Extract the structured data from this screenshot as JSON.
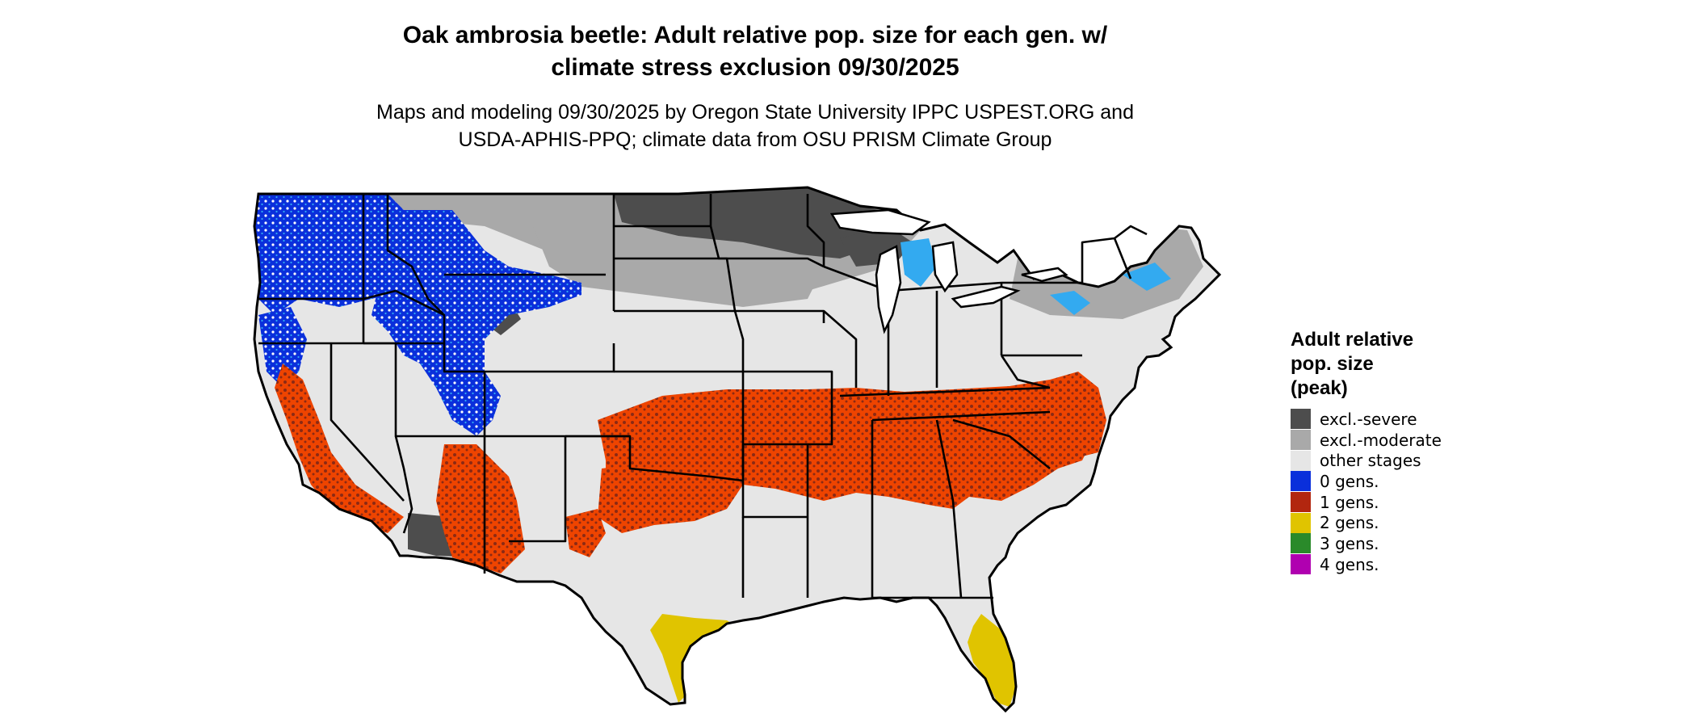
{
  "title": {
    "line1": "Oak ambrosia beetle: Adult relative pop. size for each gen. w/",
    "line2": "climate stress exclusion 09/30/2025"
  },
  "subtitle": {
    "line1": "Maps and modeling 09/30/2025 by Oregon State University IPPC USPEST.ORG and",
    "line2": "USDA-APHIS-PPQ; climate data from OSU PRISM Climate Group"
  },
  "legend": {
    "title_lines": [
      "Adult relative",
      "pop. size",
      "(peak)"
    ],
    "items": [
      {
        "label": "excl.-severe",
        "color": "#4d4d4d"
      },
      {
        "label": "excl.-moderate",
        "color": "#a9a9a9"
      },
      {
        "label": "other stages",
        "color": "#e6e6e6"
      },
      {
        "label": "0 gens.",
        "color": "#0a2fdb"
      },
      {
        "label": "1 gens.",
        "color": "#b2260f"
      },
      {
        "label": "2 gens.",
        "color": "#e0c400"
      },
      {
        "label": "3 gens.",
        "color": "#2a8a2a"
      },
      {
        "label": "4 gens.",
        "color": "#b000b0"
      }
    ]
  },
  "map": {
    "region": "Contiguous United States",
    "colors": {
      "background_land": "#e6e6e6",
      "excl_severe": "#4d4d4d",
      "excl_moderate": "#a9a9a9",
      "zero_gens": "#0a2fdb",
      "zero_gens_light": "#33aaf0",
      "one_gen": "#ee4400",
      "one_gen_dark": "#8b2a14",
      "two_gens": "#e0c400",
      "border": "#000000"
    }
  }
}
